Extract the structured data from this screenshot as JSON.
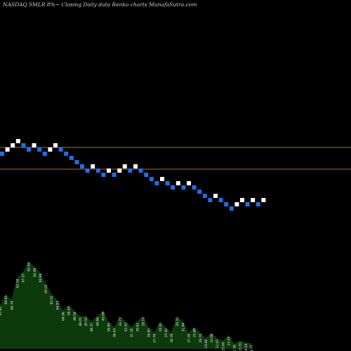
{
  "header": {
    "title": "NASDAQ SMLR 8%~  Closing Daily data  Renko  charts MunafaSutra.com"
  },
  "chart_data": {
    "type": "renko",
    "colors": {
      "background": "#000000",
      "up_brick": "#ffffff",
      "down_brick": "#1e6fe6",
      "reference_line": "#b8681c",
      "volume_fill": "#0c3a0c",
      "volume_label": "#f2f2f2"
    },
    "reference_lines": [
      {
        "level": "upper"
      },
      {
        "level": "lower"
      }
    ],
    "bricks": [
      {
        "dir": "down",
        "row": 0
      },
      {
        "dir": "up",
        "row": 1
      },
      {
        "dir": "up",
        "row": 2
      },
      {
        "dir": "up",
        "row": 3
      },
      {
        "dir": "down",
        "row": 2
      },
      {
        "dir": "down",
        "row": 1
      },
      {
        "dir": "up",
        "row": 2
      },
      {
        "dir": "down",
        "row": 1
      },
      {
        "dir": "down",
        "row": 0
      },
      {
        "dir": "up",
        "row": 1
      },
      {
        "dir": "up",
        "row": 2
      },
      {
        "dir": "down",
        "row": 1
      },
      {
        "dir": "down",
        "row": 0
      },
      {
        "dir": "down",
        "row": -1
      },
      {
        "dir": "down",
        "row": -2
      },
      {
        "dir": "down",
        "row": -3
      },
      {
        "dir": "down",
        "row": -4
      },
      {
        "dir": "up",
        "row": -3
      },
      {
        "dir": "down",
        "row": -4
      },
      {
        "dir": "down",
        "row": -5
      },
      {
        "dir": "up",
        "row": -4
      },
      {
        "dir": "down",
        "row": -5
      },
      {
        "dir": "up",
        "row": -4
      },
      {
        "dir": "up",
        "row": -3
      },
      {
        "dir": "down",
        "row": -4
      },
      {
        "dir": "up",
        "row": -3
      },
      {
        "dir": "down",
        "row": -4
      },
      {
        "dir": "down",
        "row": -5
      },
      {
        "dir": "down",
        "row": -6
      },
      {
        "dir": "down",
        "row": -7
      },
      {
        "dir": "up",
        "row": -6
      },
      {
        "dir": "down",
        "row": -7
      },
      {
        "dir": "down",
        "row": -8
      },
      {
        "dir": "up",
        "row": -7
      },
      {
        "dir": "down",
        "row": -8
      },
      {
        "dir": "up",
        "row": -7
      },
      {
        "dir": "down",
        "row": -8
      },
      {
        "dir": "down",
        "row": -9
      },
      {
        "dir": "down",
        "row": -10
      },
      {
        "dir": "down",
        "row": -11
      },
      {
        "dir": "up",
        "row": -10
      },
      {
        "dir": "down",
        "row": -11
      },
      {
        "dir": "down",
        "row": -12
      },
      {
        "dir": "down",
        "row": -13
      },
      {
        "dir": "up",
        "row": -12
      },
      {
        "dir": "up",
        "row": -11
      },
      {
        "dir": "down",
        "row": -12
      },
      {
        "dir": "up",
        "row": -11
      },
      {
        "dir": "down",
        "row": -12
      },
      {
        "dir": "up",
        "row": -11
      }
    ],
    "volume": {
      "values": [
        8,
        10,
        9,
        13,
        14,
        16,
        15,
        14,
        12,
        10,
        9,
        7,
        8,
        7,
        6,
        6,
        5,
        6,
        7,
        5,
        4,
        6,
        5,
        4,
        5,
        6,
        4,
        3,
        5,
        4,
        3,
        6,
        5,
        3,
        4,
        3,
        2,
        3,
        2,
        1.5,
        2.5,
        1,
        1.5,
        1.2,
        1
      ],
      "labels": [
        "65.42",
        "68.65",
        "66.74",
        "62.54",
        "67.37",
        "65.43",
        "62.09",
        "60.68",
        "65.02",
        "65.01",
        "64.83",
        "64.06",
        "56.43",
        "49.54",
        "48.05",
        "45.50",
        "48.37",
        "44.84",
        "43.69",
        "39.95",
        "36.03",
        "33.77",
        "32.55",
        "31.16",
        "30.62",
        "29.10",
        "28.82",
        "27.79",
        "26.61",
        "25.42",
        "28.19",
        "28.37",
        "31.94",
        "27.28",
        "25.89",
        "24.70",
        "23.84",
        "22.06",
        "21.87",
        "25.60",
        "23.35",
        "22.58",
        "21.61",
        "20.33",
        "19.77"
      ]
    }
  }
}
